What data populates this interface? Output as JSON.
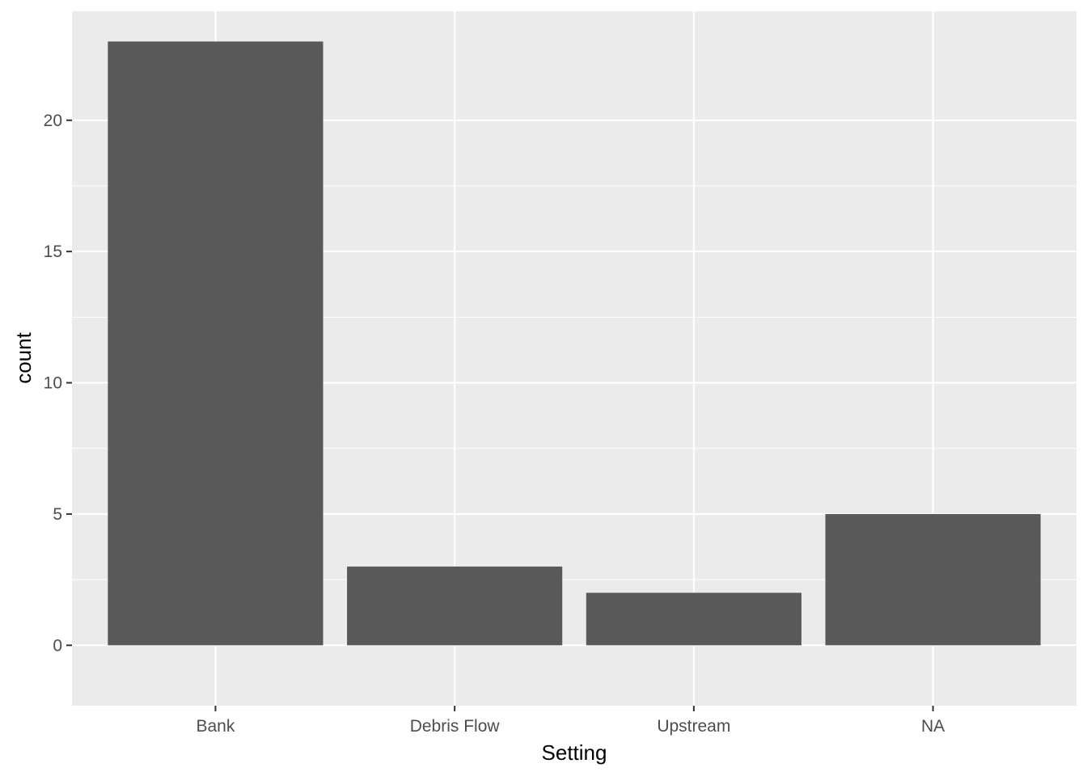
{
  "chart_data": {
    "type": "bar",
    "categories": [
      "Bank",
      "Debris Flow",
      "Upstream",
      "NA"
    ],
    "values": [
      23,
      3,
      2,
      5
    ],
    "title": "",
    "xlabel": "Setting",
    "ylabel": "count",
    "ylim": [
      -2.3,
      24.15
    ],
    "yticks": [
      0,
      5,
      10,
      15,
      20
    ],
    "grid": true,
    "legend": "none",
    "colors": {
      "bar": "#595959",
      "panel_background": "#ebebeb",
      "gridline": "#ffffff",
      "tick": "#333333"
    }
  }
}
